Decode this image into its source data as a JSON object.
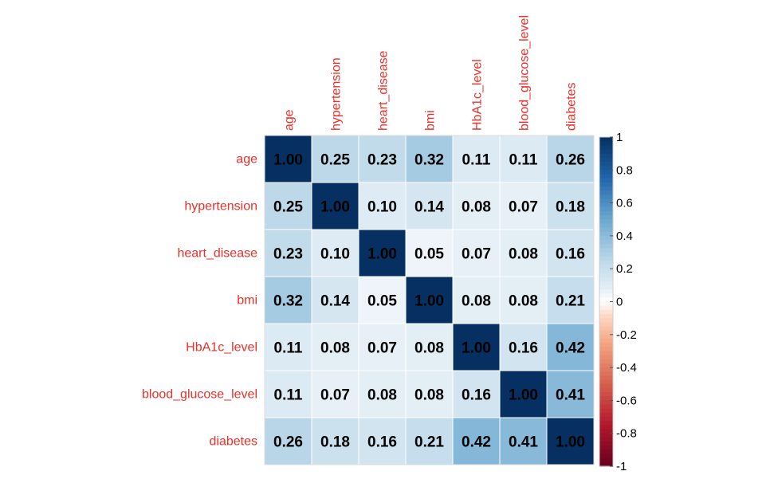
{
  "chart_data": {
    "type": "heatmap",
    "title": "",
    "variables": [
      "age",
      "hypertension",
      "heart_disease",
      "bmi",
      "HbA1c_level",
      "blood_glucose_level",
      "diabetes"
    ],
    "matrix": [
      [
        1.0,
        0.25,
        0.23,
        0.32,
        0.11,
        0.11,
        0.26
      ],
      [
        0.25,
        1.0,
        0.1,
        0.14,
        0.08,
        0.07,
        0.18
      ],
      [
        0.23,
        0.1,
        1.0,
        0.05,
        0.07,
        0.08,
        0.16
      ],
      [
        0.32,
        0.14,
        0.05,
        1.0,
        0.08,
        0.08,
        0.21
      ],
      [
        0.11,
        0.08,
        0.07,
        0.08,
        1.0,
        0.16,
        0.42
      ],
      [
        0.11,
        0.07,
        0.08,
        0.08,
        0.16,
        1.0,
        0.41
      ],
      [
        0.26,
        0.18,
        0.16,
        0.21,
        0.42,
        0.41,
        1.0
      ]
    ],
    "value_range": [
      -1,
      1
    ],
    "colorbar": {
      "ticks": [
        1,
        0.8,
        0.6,
        0.4,
        0.2,
        0,
        -0.2,
        -0.4,
        -0.6,
        -0.8,
        -1
      ],
      "tick_labels": [
        "1",
        "0.8",
        "0.6",
        "0.4",
        "0.2",
        "0",
        "-0.2",
        "-0.4",
        "-0.6",
        "-0.8",
        "-1"
      ],
      "placement": "right"
    },
    "colors": {
      "label_color": "#e8302a",
      "negative_end": "#67001f",
      "mid": "#ffffff",
      "positive_end": "#053061"
    },
    "grid": true
  }
}
